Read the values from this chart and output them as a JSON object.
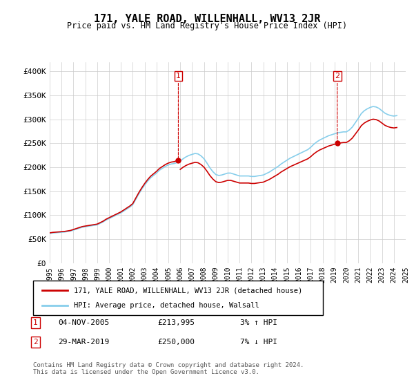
{
  "title": "171, YALE ROAD, WILLENHALL, WV13 2JR",
  "subtitle": "Price paid vs. HM Land Registry's House Price Index (HPI)",
  "legend_line1": "171, YALE ROAD, WILLENHALL, WV13 2JR (detached house)",
  "legend_line2": "HPI: Average price, detached house, Walsall",
  "annotation1": {
    "label": "1",
    "date": "04-NOV-2005",
    "price": "£213,995",
    "pct": "3% ↑ HPI"
  },
  "annotation2": {
    "label": "2",
    "date": "29-MAR-2019",
    "price": "£250,000",
    "pct": "7% ↓ HPI"
  },
  "footer": "Contains HM Land Registry data © Crown copyright and database right 2024.\nThis data is licensed under the Open Government Licence v3.0.",
  "hpi_color": "#87CEEB",
  "price_color": "#CC0000",
  "background_color": "#ffffff",
  "ylim": [
    0,
    420000
  ],
  "yticks": [
    0,
    50000,
    100000,
    150000,
    200000,
    250000,
    300000,
    350000,
    400000
  ],
  "ytick_labels": [
    "£0",
    "£50K",
    "£100K",
    "£150K",
    "£200K",
    "£250K",
    "£300K",
    "£350K",
    "£400K"
  ],
  "hpi_years": [
    1995.0,
    1995.25,
    1995.5,
    1995.75,
    1996.0,
    1996.25,
    1996.5,
    1996.75,
    1997.0,
    1997.25,
    1997.5,
    1997.75,
    1998.0,
    1998.25,
    1998.5,
    1998.75,
    1999.0,
    1999.25,
    1999.5,
    1999.75,
    2000.0,
    2000.25,
    2000.5,
    2000.75,
    2001.0,
    2001.25,
    2001.5,
    2001.75,
    2002.0,
    2002.25,
    2002.5,
    2002.75,
    2003.0,
    2003.25,
    2003.5,
    2003.75,
    2004.0,
    2004.25,
    2004.5,
    2004.75,
    2005.0,
    2005.25,
    2005.5,
    2005.75,
    2006.0,
    2006.25,
    2006.5,
    2006.75,
    2007.0,
    2007.25,
    2007.5,
    2007.75,
    2008.0,
    2008.25,
    2008.5,
    2008.75,
    2009.0,
    2009.25,
    2009.5,
    2009.75,
    2010.0,
    2010.25,
    2010.5,
    2010.75,
    2011.0,
    2011.25,
    2011.5,
    2011.75,
    2012.0,
    2012.25,
    2012.5,
    2012.75,
    2013.0,
    2013.25,
    2013.5,
    2013.75,
    2014.0,
    2014.25,
    2014.5,
    2014.75,
    2015.0,
    2015.25,
    2015.5,
    2015.75,
    2016.0,
    2016.25,
    2016.5,
    2016.75,
    2017.0,
    2017.25,
    2017.5,
    2017.75,
    2018.0,
    2018.25,
    2018.5,
    2018.75,
    2019.0,
    2019.25,
    2019.5,
    2019.75,
    2020.0,
    2020.25,
    2020.5,
    2020.75,
    2021.0,
    2021.25,
    2021.5,
    2021.75,
    2022.0,
    2022.25,
    2022.5,
    2022.75,
    2023.0,
    2023.25,
    2023.5,
    2023.75,
    2024.0,
    2024.25
  ],
  "hpi_values": [
    62000,
    63000,
    63500,
    64000,
    64500,
    65000,
    66000,
    67000,
    69000,
    71000,
    73000,
    75000,
    76000,
    77000,
    78000,
    79000,
    80000,
    83000,
    86000,
    90000,
    93000,
    96000,
    99000,
    102000,
    105000,
    109000,
    113000,
    117000,
    122000,
    133000,
    144000,
    154000,
    163000,
    171000,
    178000,
    183000,
    188000,
    194000,
    198000,
    202000,
    205000,
    207000,
    208000,
    210000,
    213000,
    218000,
    222000,
    225000,
    227000,
    229000,
    228000,
    224000,
    218000,
    209000,
    199000,
    191000,
    185000,
    183000,
    184000,
    186000,
    188000,
    188000,
    186000,
    184000,
    182000,
    182000,
    182000,
    182000,
    181000,
    181000,
    182000,
    183000,
    184000,
    187000,
    190000,
    194000,
    198000,
    202000,
    207000,
    211000,
    215000,
    219000,
    222000,
    225000,
    228000,
    231000,
    234000,
    237000,
    242000,
    248000,
    253000,
    257000,
    260000,
    263000,
    266000,
    268000,
    270000,
    272000,
    273000,
    274000,
    274000,
    278000,
    284000,
    293000,
    302000,
    312000,
    318000,
    322000,
    325000,
    327000,
    326000,
    323000,
    318000,
    313000,
    310000,
    308000,
    307000,
    308000
  ],
  "sale_years": [
    2005.84,
    2019.23
  ],
  "sale_prices": [
    213995,
    250000
  ],
  "ann1_x": 2005.84,
  "ann1_y": 213995,
  "ann2_x": 2019.23,
  "ann2_y": 250000,
  "xmin": 1995,
  "xmax": 2025,
  "xticks": [
    1995,
    1996,
    1997,
    1998,
    1999,
    2000,
    2001,
    2002,
    2003,
    2004,
    2005,
    2006,
    2007,
    2008,
    2009,
    2010,
    2011,
    2012,
    2013,
    2014,
    2015,
    2016,
    2017,
    2018,
    2019,
    2020,
    2021,
    2022,
    2023,
    2024,
    2025
  ]
}
